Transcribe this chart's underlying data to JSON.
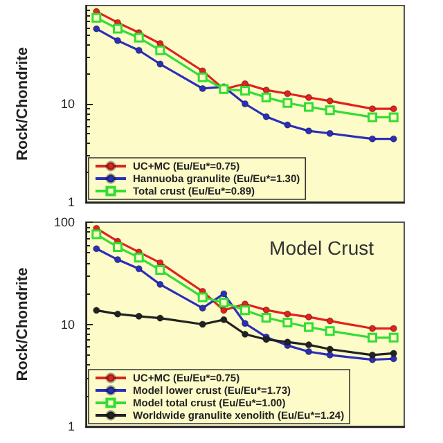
{
  "chart_data": [
    {
      "type": "line",
      "ylabel": "Rock/Chondrite",
      "log": "y",
      "ylim": [
        1,
        100
      ],
      "yticks": [
        1,
        10
      ],
      "tick_labels": "y",
      "legend": "bottom left",
      "grid": false,
      "line_style": "solid",
      "categories": [
        null,
        null,
        null,
        null,
        null,
        null,
        null,
        null,
        null,
        null,
        null,
        null,
        null,
        null,
        null
      ],
      "series": [
        {
          "name": "UC+MC (Eu/Eu*=0.75)",
          "color": "#e0231c",
          "marker": "circle",
          "values": [
            87,
            67,
            53,
            41,
            null,
            21.6,
            14.1,
            16.0,
            13.8,
            12.7,
            11.6,
            10.7,
            null,
            8.9,
            8.9
          ]
        },
        {
          "name": "Hannuoba granulite (Eu/Eu*=1.30)",
          "color": "#2b2fb8",
          "marker": "circle",
          "values": [
            58,
            44,
            35,
            25.4,
            null,
            14.3,
            14.9,
            10,
            7.4,
            6.1,
            5.3,
            5.0,
            null,
            4.4,
            4.4
          ]
        },
        {
          "name": "Total crust (Eu/Eu*=0.89)",
          "color": "#33dd33",
          "marker": "square",
          "values": [
            75,
            58,
            47,
            35,
            null,
            18.6,
            14.1,
            13.6,
            11.6,
            10.2,
            9.3,
            8.6,
            null,
            7.3,
            7.3
          ]
        }
      ]
    },
    {
      "type": "line",
      "ylabel": "Rock/Chondrite",
      "log": "y",
      "ylim": [
        1,
        100
      ],
      "yticks": [
        1,
        10,
        100
      ],
      "tick_labels": "y",
      "legend": "bottom left",
      "grid": false,
      "line_style": "solid",
      "annotations": [
        "Model Crust"
      ],
      "categories": [
        null,
        null,
        null,
        null,
        null,
        null,
        null,
        null,
        null,
        null,
        null,
        null,
        null,
        null,
        null
      ],
      "series": [
        {
          "name": "UC+MC (Eu/Eu*=0.75)",
          "color": "#e0231c",
          "marker": "circle",
          "values": [
            87,
            65,
            51,
            40,
            null,
            21,
            13.7,
            15.8,
            13.8,
            12.6,
            11.8,
            10.8,
            null,
            9.1,
            9.1
          ]
        },
        {
          "name": "Model lower crust (Eu/Eu*=1.73)",
          "color": "#2b2fb8",
          "marker": "circle",
          "values": [
            55,
            43,
            35,
            24.6,
            null,
            14.4,
            19.9,
            10.2,
            7.5,
            6.2,
            5.4,
            5.0,
            null,
            4.5,
            4.6
          ]
        },
        {
          "name": "Model total crust (Eu/Eu*=1.00)",
          "color": "#33dd33",
          "marker": "square",
          "values": [
            76,
            57,
            45,
            34,
            null,
            18.4,
            16.3,
            13.7,
            11.6,
            10.4,
            9.4,
            8.6,
            null,
            7.4,
            7.4
          ]
        },
        {
          "name": "Worldwide granulite xenolith (Eu/Eu*=1.24)",
          "color": "#222222",
          "marker": "circle",
          "values": [
            13.7,
            12.6,
            12.0,
            11.5,
            null,
            10,
            11.1,
            8.0,
            7.1,
            6.7,
            6.3,
            5.7,
            null,
            5.0,
            5.2
          ]
        }
      ]
    }
  ]
}
